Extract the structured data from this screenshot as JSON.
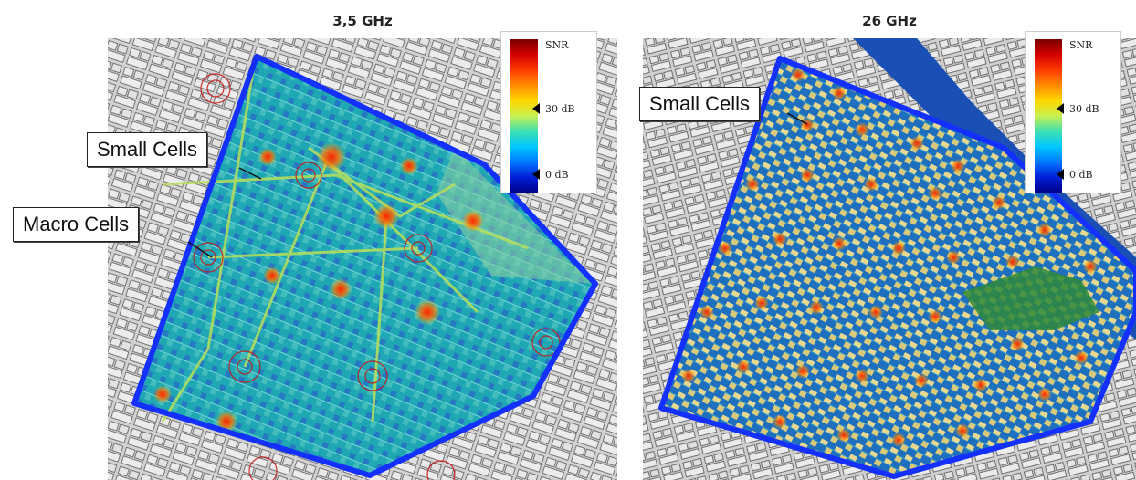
{
  "left": {
    "title": "3,5 GHz",
    "legend": {
      "title": "SNR",
      "mid_label": "30 dB",
      "low_label": "0 dB"
    },
    "callouts": {
      "small_cells": "Small Cells",
      "macro_cells": "Macro Cells"
    }
  },
  "right": {
    "title": "26 GHz",
    "legend": {
      "title": "SNR",
      "mid_label": "30 dB",
      "low_label": "0 dB"
    },
    "callouts": {
      "small_cells": "Small Cells"
    }
  },
  "colors": {
    "boundary": "#1430ff",
    "coverage_low": "#1aa6a6",
    "coverage_high": "#ff2a00",
    "river": "#1a4fb5",
    "park": "#2f8a3a"
  }
}
